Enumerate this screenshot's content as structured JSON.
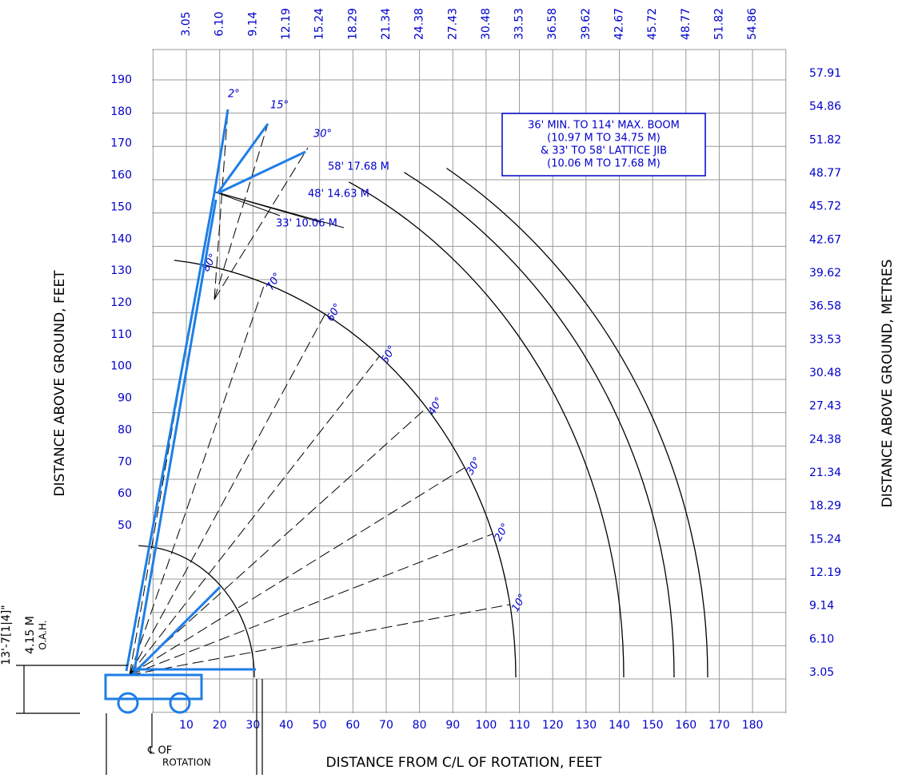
{
  "top_axis": {
    "ticks": [
      "3.05",
      "6.10",
      "9.14",
      "12.19",
      "15.24",
      "18.29",
      "21.34",
      "24.38",
      "27.43",
      "30.48",
      "33.53",
      "36.58",
      "39.62",
      "42.67",
      "45.72",
      "48.77",
      "51.82",
      "54.86"
    ]
  },
  "bottom_axis": {
    "ticks": [
      10,
      20,
      30,
      40,
      50,
      60,
      70,
      80,
      90,
      100,
      110,
      120,
      130,
      140,
      150,
      160,
      170,
      180
    ],
    "title": "DISTANCE FROM C/L OF ROTATION, FEET"
  },
  "left_axis": {
    "ticks": [
      50,
      60,
      70,
      80,
      90,
      100,
      110,
      120,
      130,
      140,
      150,
      160,
      170,
      180,
      190
    ],
    "title": "DISTANCE ABOVE GROUND, FEET"
  },
  "right_axis": {
    "ticks": [
      "3.05",
      "6.10",
      "9.14",
      "12.19",
      "15.24",
      "18.29",
      "21.34",
      "24.38",
      "27.43",
      "30.48",
      "33.53",
      "36.58",
      "39.62",
      "42.67",
      "45.72",
      "48.77",
      "51.82",
      "54.86",
      "57.91"
    ],
    "title": "DISTANCE ABOVE GROUND, METRES"
  },
  "boom_angles": [
    "10°",
    "20°",
    "30°",
    "40°",
    "50°",
    "60°",
    "70°",
    "80°"
  ],
  "jib_offsets": [
    "2°",
    "15°",
    "30°"
  ],
  "jib_lengths": [
    "33' 10.06 M",
    "48' 14.63 M",
    "58' 17.68 M"
  ],
  "note": [
    "36' MIN. TO 114' MAX. BOOM",
    "(10.97 M TO 34.75 M)",
    "& 33' TO 58' LATTICE JIB",
    "(10.06 M TO 17.68 M)"
  ],
  "dimension": [
    "13'-7[1|4]\"",
    "4.15 M",
    "O.A.H."
  ],
  "rotation_label": [
    "℄ OF",
    "ROTATION"
  ]
}
